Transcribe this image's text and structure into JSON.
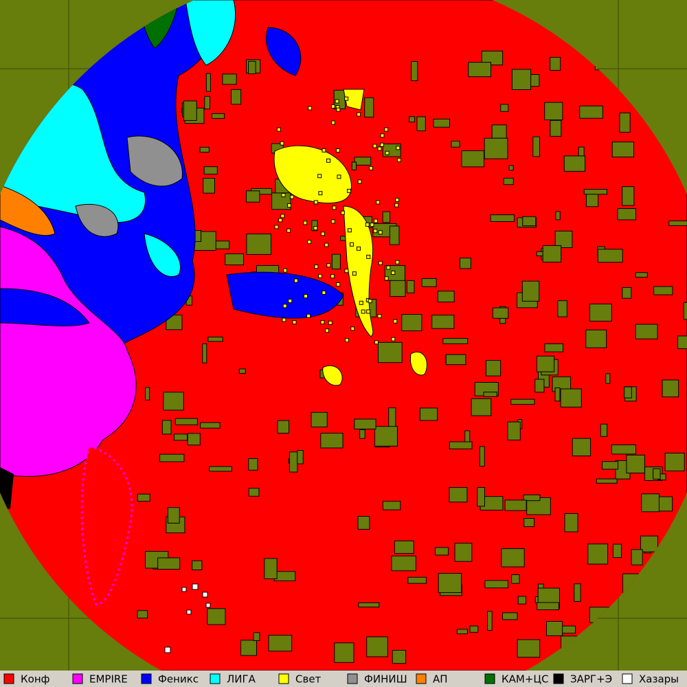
{
  "legend": [
    {
      "label": "Конф",
      "color": "#ff0000"
    },
    {
      "label": "EMPIRE",
      "color": "#ff00ff"
    },
    {
      "label": "Феникс",
      "color": "#0000ff"
    },
    {
      "label": "ЛИГА",
      "color": "#00ffff"
    },
    {
      "label": "Свет",
      "color": "#ffff00"
    },
    {
      "label": "ФИНИШ",
      "color": "#909090"
    },
    {
      "label": "АП",
      "color": "#ff8000"
    },
    {
      "label": "КАМ+ЦС",
      "color": "#007000"
    },
    {
      "label": "ЗАРГ+Э",
      "color": "#000000"
    },
    {
      "label": "Хазары",
      "color": "#ffffff"
    }
  ]
}
